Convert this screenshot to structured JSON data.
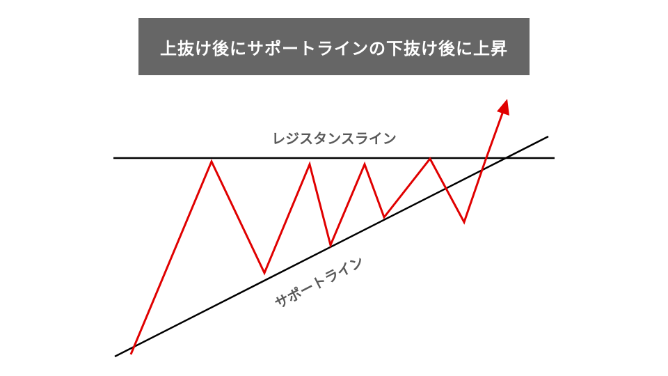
{
  "title": "上抜け後にサポートラインの下抜け後に上昇",
  "labels": {
    "resistance": "レジスタンスライン",
    "support": "サポートライン"
  },
  "colors": {
    "title_bg": "#666666",
    "title_text": "#ffffff",
    "price_line": "#e00000",
    "trend_lines": "#000000",
    "label_text": "#595959"
  }
}
